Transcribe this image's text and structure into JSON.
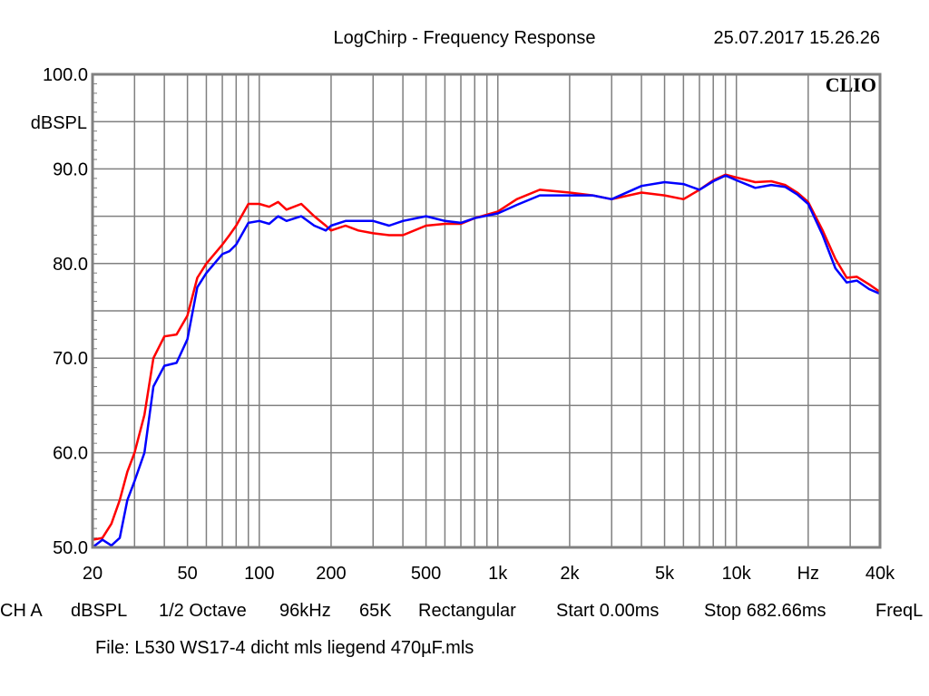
{
  "chart_data": {
    "type": "line",
    "title": "LogChirp - Frequency Response",
    "timestamp": "25.07.2017 15.26.26",
    "logo": "CLIO",
    "ylabel": "dBSPL",
    "xlabel": "Hz",
    "x_scale": "log",
    "xlim": [
      20,
      40000
    ],
    "ylim": [
      50,
      100
    ],
    "grid": true,
    "x_tick_labels": [
      {
        "v": 20,
        "label": "20"
      },
      {
        "v": 50,
        "label": "50"
      },
      {
        "v": 100,
        "label": "100"
      },
      {
        "v": 200,
        "label": "200"
      },
      {
        "v": 500,
        "label": "500"
      },
      {
        "v": 1000,
        "label": "1k"
      },
      {
        "v": 2000,
        "label": "2k"
      },
      {
        "v": 5000,
        "label": "5k"
      },
      {
        "v": 10000,
        "label": "10k"
      },
      {
        "v": 20000,
        "label": "Hz"
      },
      {
        "v": 40000,
        "label": "40k"
      }
    ],
    "y_tick_labels": [
      {
        "v": 100,
        "label": "100.0"
      },
      {
        "v": 90,
        "label": "90.0"
      },
      {
        "v": 80,
        "label": "80.0"
      },
      {
        "v": 70,
        "label": "70.0"
      },
      {
        "v": 60,
        "label": "60.0"
      },
      {
        "v": 50,
        "label": "50.0"
      }
    ],
    "x": [
      20,
      22,
      24,
      26,
      28,
      30,
      33,
      36,
      40,
      45,
      50,
      55,
      60,
      70,
      75,
      80,
      90,
      100,
      110,
      120,
      130,
      150,
      170,
      190,
      200,
      230,
      260,
      300,
      350,
      400,
      500,
      600,
      700,
      800,
      1000,
      1200,
      1500,
      2000,
      2500,
      3000,
      4000,
      5000,
      6000,
      7000,
      8000,
      9000,
      10000,
      12000,
      14000,
      16000,
      18000,
      20000,
      23000,
      26000,
      29000,
      32000,
      36000,
      40000
    ],
    "series": [
      {
        "color": "#ff0000",
        "values": [
          50.8,
          51,
          52.5,
          55,
          58,
          60,
          64,
          70,
          72.3,
          72.5,
          74.5,
          78.5,
          80,
          82,
          83,
          84,
          86.3,
          86.3,
          86,
          86.5,
          85.7,
          86.3,
          85,
          84,
          83.5,
          84,
          83.5,
          83.2,
          83,
          83,
          84,
          84.2,
          84.2,
          84.8,
          85.5,
          86.8,
          87.8,
          87.5,
          87.2,
          86.8,
          87.5,
          87.2,
          86.8,
          87.8,
          88.8,
          89.4,
          89.1,
          88.6,
          88.7,
          88.3,
          87.5,
          86.5,
          83.5,
          80.5,
          78.5,
          78.6,
          77.8,
          77
        ]
      },
      {
        "color": "#0000ff",
        "values": [
          49.5,
          50.8,
          50.2,
          51,
          55,
          57,
          60,
          67,
          69.2,
          69.5,
          72,
          77.5,
          79,
          81,
          81.3,
          82,
          84.3,
          84.5,
          84.2,
          85,
          84.5,
          85,
          84,
          83.5,
          84,
          84.5,
          84.5,
          84.5,
          84,
          84.5,
          85,
          84.5,
          84.3,
          84.8,
          85.3,
          86.2,
          87.2,
          87.2,
          87.2,
          86.8,
          88.2,
          88.6,
          88.4,
          87.8,
          88.7,
          89.3,
          88.8,
          88,
          88.3,
          88.1,
          87.3,
          86.3,
          83,
          79.5,
          78,
          78.2,
          77.3,
          76.8
        ]
      }
    ]
  },
  "footer": {
    "settings": [
      "CH A",
      "dBSPL",
      "1/2 Octave",
      "96kHz",
      "65K",
      "Rectangular",
      "Start 0.00ms",
      "Stop 682.66ms",
      "FreqL"
    ],
    "file": "File: L530 WS17-4 dicht mls liegend 470µF.mls"
  }
}
